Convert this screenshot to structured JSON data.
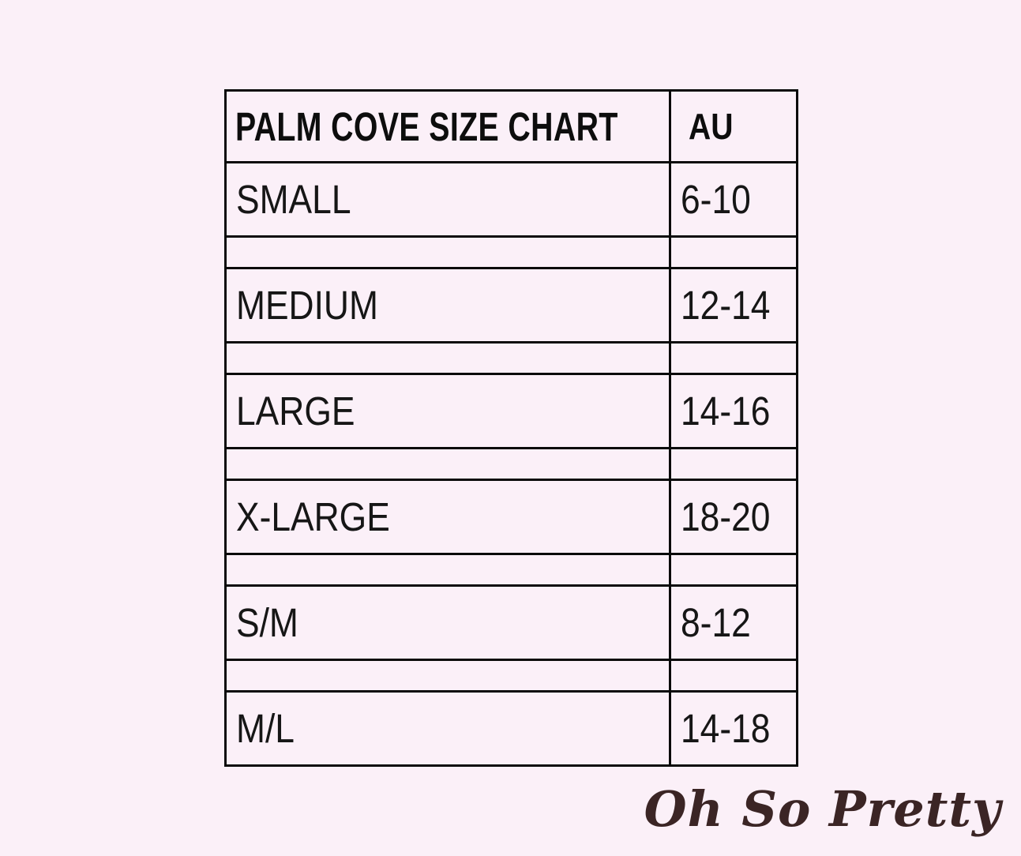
{
  "table": {
    "title": "PALM COVE SIZE CHART",
    "unit_header": "AU",
    "rows": [
      {
        "size": "SMALL",
        "au": "6-10"
      },
      {
        "size": "MEDIUM",
        "au": "12-14"
      },
      {
        "size": "LARGE",
        "au": "14-16"
      },
      {
        "size": "X-LARGE",
        "au": "18-20"
      },
      {
        "size": "S/M",
        "au": "8-12"
      },
      {
        "size": "M/L",
        "au": "14-18"
      }
    ]
  },
  "branding": {
    "logo_text": "Oh So Pretty"
  },
  "colors": {
    "background": "#fbf0f8",
    "table_border": "#0a0a0a",
    "text": "#161616",
    "logo": "#3b2525"
  },
  "chart_data": {
    "type": "table",
    "title": "PALM COVE SIZE CHART",
    "columns": [
      "PALM COVE SIZE CHART",
      "AU"
    ],
    "rows": [
      [
        "SMALL",
        "6-10"
      ],
      [
        "MEDIUM",
        "12-14"
      ],
      [
        "LARGE",
        "14-16"
      ],
      [
        "X-LARGE",
        "18-20"
      ],
      [
        "S/M",
        "8-12"
      ],
      [
        "M/L",
        "14-18"
      ]
    ],
    "layout": {
      "spacer_rows_between_entries": true,
      "grid": "full-borders"
    }
  }
}
